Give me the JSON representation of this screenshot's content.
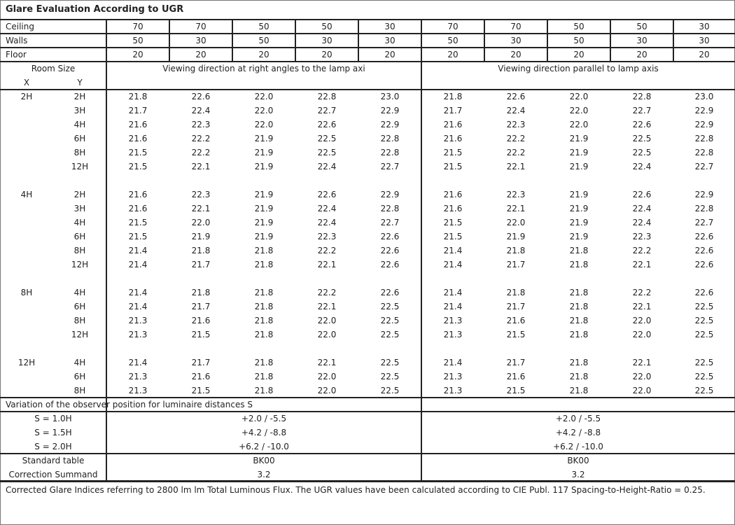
{
  "title": "Glare Evaluation According to UGR",
  "reflectances": [
    {
      "label": "Ceiling",
      "values": [
        "70",
        "70",
        "50",
        "50",
        "30",
        "70",
        "70",
        "50",
        "50",
        "30"
      ]
    },
    {
      "label": "Walls",
      "values": [
        "50",
        "30",
        "50",
        "30",
        "30",
        "50",
        "30",
        "50",
        "30",
        "30"
      ]
    },
    {
      "label": "Floor",
      "values": [
        "20",
        "20",
        "20",
        "20",
        "20",
        "20",
        "20",
        "20",
        "20",
        "20"
      ]
    }
  ],
  "header": {
    "room_size": "Room Size",
    "x": "X",
    "y": "Y",
    "right_angles": "Viewing direction at right angles to the lamp axi",
    "parallel": "Viewing direction parallel to lamp axis"
  },
  "groups": [
    {
      "x": "2H",
      "rows": [
        {
          "y": "2H",
          "values": [
            "21.8",
            "22.6",
            "22.0",
            "22.8",
            "23.0",
            "21.8",
            "22.6",
            "22.0",
            "22.8",
            "23.0"
          ]
        },
        {
          "y": "3H",
          "values": [
            "21.7",
            "22.4",
            "22.0",
            "22.7",
            "22.9",
            "21.7",
            "22.4",
            "22.0",
            "22.7",
            "22.9"
          ]
        },
        {
          "y": "4H",
          "values": [
            "21.6",
            "22.3",
            "22.0",
            "22.6",
            "22.9",
            "21.6",
            "22.3",
            "22.0",
            "22.6",
            "22.9"
          ]
        },
        {
          "y": "6H",
          "values": [
            "21.6",
            "22.2",
            "21.9",
            "22.5",
            "22.8",
            "21.6",
            "22.2",
            "21.9",
            "22.5",
            "22.8"
          ]
        },
        {
          "y": "8H",
          "values": [
            "21.5",
            "22.2",
            "21.9",
            "22.5",
            "22.8",
            "21.5",
            "22.2",
            "21.9",
            "22.5",
            "22.8"
          ]
        },
        {
          "y": "12H",
          "values": [
            "21.5",
            "22.1",
            "21.9",
            "22.4",
            "22.7",
            "21.5",
            "22.1",
            "21.9",
            "22.4",
            "22.7"
          ]
        }
      ]
    },
    {
      "x": "4H",
      "rows": [
        {
          "y": "2H",
          "values": [
            "21.6",
            "22.3",
            "21.9",
            "22.6",
            "22.9",
            "21.6",
            "22.3",
            "21.9",
            "22.6",
            "22.9"
          ]
        },
        {
          "y": "3H",
          "values": [
            "21.6",
            "22.1",
            "21.9",
            "22.4",
            "22.8",
            "21.6",
            "22.1",
            "21.9",
            "22.4",
            "22.8"
          ]
        },
        {
          "y": "4H",
          "values": [
            "21.5",
            "22.0",
            "21.9",
            "22.4",
            "22.7",
            "21.5",
            "22.0",
            "21.9",
            "22.4",
            "22.7"
          ]
        },
        {
          "y": "6H",
          "values": [
            "21.5",
            "21.9",
            "21.9",
            "22.3",
            "22.6",
            "21.5",
            "21.9",
            "21.9",
            "22.3",
            "22.6"
          ]
        },
        {
          "y": "8H",
          "values": [
            "21.4",
            "21.8",
            "21.8",
            "22.2",
            "22.6",
            "21.4",
            "21.8",
            "21.8",
            "22.2",
            "22.6"
          ]
        },
        {
          "y": "12H",
          "values": [
            "21.4",
            "21.7",
            "21.8",
            "22.1",
            "22.6",
            "21.4",
            "21.7",
            "21.8",
            "22.1",
            "22.6"
          ]
        }
      ]
    },
    {
      "x": "8H",
      "rows": [
        {
          "y": "4H",
          "values": [
            "21.4",
            "21.8",
            "21.8",
            "22.2",
            "22.6",
            "21.4",
            "21.8",
            "21.8",
            "22.2",
            "22.6"
          ]
        },
        {
          "y": "6H",
          "values": [
            "21.4",
            "21.7",
            "21.8",
            "22.1",
            "22.5",
            "21.4",
            "21.7",
            "21.8",
            "22.1",
            "22.5"
          ]
        },
        {
          "y": "8H",
          "values": [
            "21.3",
            "21.6",
            "21.8",
            "22.0",
            "22.5",
            "21.3",
            "21.6",
            "21.8",
            "22.0",
            "22.5"
          ]
        },
        {
          "y": "12H",
          "values": [
            "21.3",
            "21.5",
            "21.8",
            "22.0",
            "22.5",
            "21.3",
            "21.5",
            "21.8",
            "22.0",
            "22.5"
          ]
        }
      ]
    },
    {
      "x": "12H",
      "rows": [
        {
          "y": "4H",
          "values": [
            "21.4",
            "21.7",
            "21.8",
            "22.1",
            "22.5",
            "21.4",
            "21.7",
            "21.8",
            "22.1",
            "22.5"
          ]
        },
        {
          "y": "6H",
          "values": [
            "21.3",
            "21.6",
            "21.8",
            "22.0",
            "22.5",
            "21.3",
            "21.6",
            "21.8",
            "22.0",
            "22.5"
          ]
        },
        {
          "y": "8H",
          "values": [
            "21.3",
            "21.5",
            "21.8",
            "22.0",
            "22.5",
            "21.3",
            "21.5",
            "21.8",
            "22.0",
            "22.5"
          ]
        }
      ]
    }
  ],
  "variation": {
    "title": "Variation of the observer position for luminaire distances S",
    "rows": [
      {
        "label": "S = 1.0H",
        "right_angles": "+2.0 / -5.5",
        "parallel": "+2.0 / -5.5"
      },
      {
        "label": "S = 1.5H",
        "right_angles": "+4.2 / -8.8",
        "parallel": "+4.2 / -8.8"
      },
      {
        "label": "S = 2.0H",
        "right_angles": "+6.2 / -10.0",
        "parallel": "+6.2 / -10.0"
      }
    ]
  },
  "standard": [
    {
      "label": "Standard table",
      "right_angles": "BK00",
      "parallel": "BK00"
    },
    {
      "label": "Correction Summand",
      "right_angles": "3.2",
      "parallel": "3.2"
    }
  ],
  "footer": "Corrected Glare Indices referring to 2800 lm lm Total Luminous Flux. The UGR values have been calculated according to CIE Publ. 117    Spacing-to-Height-Ratio = 0.25."
}
